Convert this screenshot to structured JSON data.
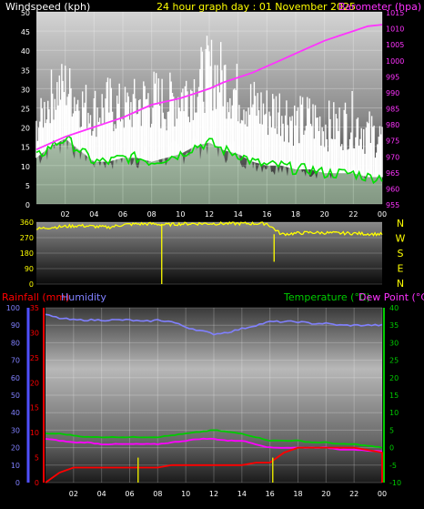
{
  "header": {
    "wind_label": "Windspeed (kph)",
    "graph_title": "24 hour graph day : 01 November 2025",
    "baro_label": "Barometer (hpa)",
    "rain_label": "Rainfall (mm)",
    "humidity_label": "Humidity",
    "temp_label": "Temperature (°C)",
    "dew_label": "Dew Point (°C)"
  },
  "colors": {
    "wind": "#ffffff",
    "gust": "#d8ffd8",
    "avg_wind": "#00e000",
    "barometer": "#ff33ff",
    "direction": "#ffff00",
    "rain": "#ff0000",
    "humidity": "#8080ff",
    "temperature": "#00cc00",
    "dewpoint": "#ff00ff"
  },
  "compass": [
    "N",
    "W",
    "S",
    "E",
    "N"
  ],
  "chart_data": [
    {
      "type": "line",
      "name": "wind-barometer",
      "x_ticks": [
        "02",
        "04",
        "06",
        "08",
        "10",
        "12",
        "14",
        "16",
        "18",
        "20",
        "22",
        "00"
      ],
      "ylabel": "Windspeed (kph)",
      "ylim": [
        0,
        50
      ],
      "y_ticks": [
        0,
        5,
        10,
        15,
        20,
        25,
        30,
        35,
        40,
        45,
        50
      ],
      "y2label": "Barometer (hpa)",
      "y2lim": [
        955,
        1015
      ],
      "y2_ticks": [
        955,
        960,
        965,
        970,
        975,
        980,
        985,
        990,
        995,
        1000,
        1005,
        1010,
        1015
      ],
      "hours": [
        0,
        1,
        2,
        3,
        4,
        5,
        6,
        7,
        8,
        9,
        10,
        11,
        12,
        13,
        14,
        15,
        16,
        17,
        18,
        19,
        20,
        21,
        22,
        23,
        24
      ],
      "series": [
        {
          "key": "gust",
          "values": [
            22,
            32,
            35,
            30,
            28,
            30,
            28,
            30,
            32,
            30,
            33,
            35,
            40,
            38,
            33,
            30,
            28,
            29,
            25,
            26,
            24,
            24,
            26,
            22,
            20
          ]
        },
        {
          "key": "avg_wind",
          "values": [
            12,
            15,
            17,
            14,
            11,
            11,
            12,
            12,
            11,
            12,
            13,
            15,
            16,
            14,
            13,
            11,
            10,
            10,
            9,
            9,
            8,
            8,
            8,
            7,
            7
          ]
        },
        {
          "key": "barometer",
          "values": [
            972,
            974,
            976,
            977.5,
            979,
            980.5,
            982,
            984,
            986,
            987,
            988,
            989.5,
            991,
            993,
            994.5,
            996,
            998,
            1000,
            1002,
            1004,
            1006,
            1007.5,
            1009,
            1010.5,
            1011
          ]
        }
      ]
    },
    {
      "type": "line",
      "name": "wind-direction",
      "ylabel": "Direction",
      "ylim": [
        0,
        360
      ],
      "y_ticks": [
        0,
        90,
        180,
        270,
        360
      ],
      "hours": [
        0,
        1,
        2,
        3,
        4,
        5,
        6,
        7,
        8,
        9,
        10,
        11,
        12,
        13,
        14,
        15,
        16,
        17,
        18,
        19,
        20,
        21,
        22,
        23,
        24
      ],
      "series": [
        {
          "key": "direction",
          "values": [
            320,
            330,
            335,
            340,
            335,
            330,
            345,
            350,
            350,
            345,
            350,
            352,
            352,
            352,
            352,
            352,
            352,
            290,
            295,
            300,
            298,
            296,
            295,
            292,
            290
          ]
        }
      ]
    },
    {
      "type": "line",
      "name": "rain-humidity-temperature",
      "ylabel": "Rainfall (mm)",
      "ylim": [
        0,
        35
      ],
      "y_ticks": [
        0,
        5,
        10,
        15,
        20,
        25,
        30,
        35
      ],
      "humidity_ticks": [
        0,
        10,
        20,
        30,
        40,
        50,
        60,
        70,
        80,
        90,
        100
      ],
      "humidity_lim": [
        0,
        100
      ],
      "y2label": "Temperature (°C)",
      "y2lim": [
        -10,
        40
      ],
      "y2_ticks": [
        -10,
        -5,
        0,
        5,
        10,
        15,
        20,
        25,
        30,
        35,
        40
      ],
      "hours": [
        0,
        1,
        2,
        3,
        4,
        5,
        6,
        7,
        8,
        9,
        10,
        11,
        12,
        13,
        14,
        15,
        16,
        17,
        18,
        19,
        20,
        21,
        22,
        23,
        24
      ],
      "series": [
        {
          "key": "humidity",
          "values": [
            96,
            94,
            93,
            93,
            93,
            93,
            93,
            92,
            93,
            92,
            89,
            87,
            85,
            86,
            88,
            90,
            92,
            92,
            92,
            91,
            91,
            90,
            90,
            90,
            90
          ]
        },
        {
          "key": "temperature",
          "values": [
            4,
            4,
            3.5,
            3,
            3,
            3,
            3,
            3,
            3,
            3.5,
            4,
            4.5,
            5,
            4.5,
            4,
            3,
            2,
            2,
            2,
            1.5,
            1.5,
            1,
            1,
            0.5,
            0
          ]
        },
        {
          "key": "dewpoint",
          "values": [
            2.5,
            2,
            1.5,
            1.5,
            1,
            1,
            1,
            1,
            1,
            1.5,
            2,
            2.5,
            2.5,
            2,
            2,
            1,
            0,
            0,
            0,
            0,
            0,
            -0.5,
            -0.5,
            -1,
            -1
          ]
        },
        {
          "key": "rain",
          "values": [
            0,
            2,
            3,
            3,
            3,
            3,
            3,
            3,
            3,
            3.5,
            3.5,
            3.5,
            3.5,
            3.5,
            3.5,
            4,
            4,
            6,
            7,
            7,
            7,
            7,
            7,
            6.5,
            6
          ]
        }
      ]
    }
  ]
}
